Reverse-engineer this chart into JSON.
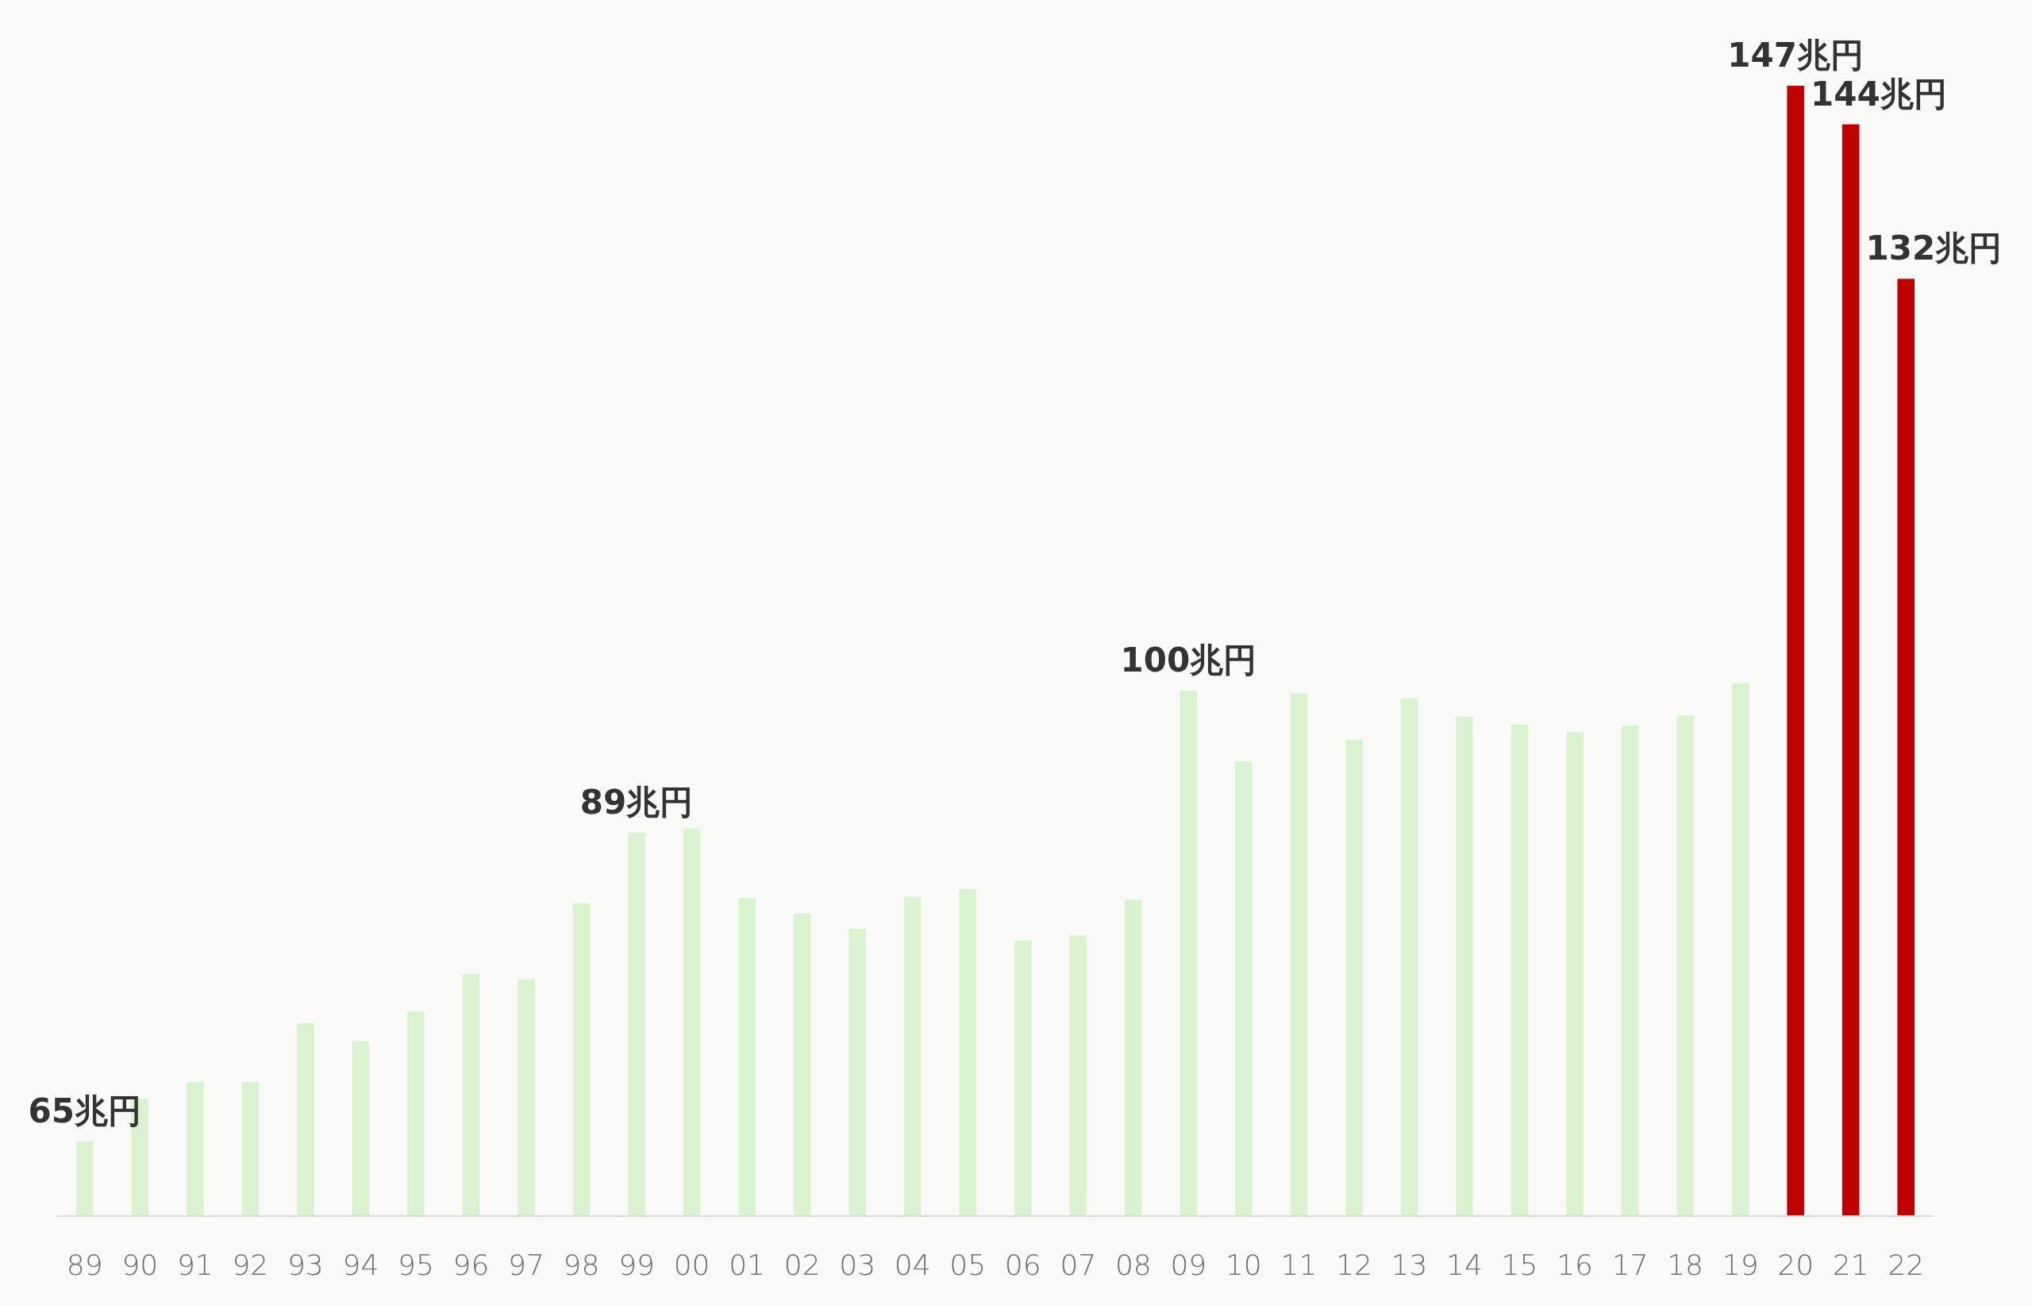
{
  "chart_data": {
    "type": "bar",
    "categories": [
      "89",
      "90",
      "91",
      "92",
      "93",
      "94",
      "95",
      "96",
      "97",
      "98",
      "99",
      "00",
      "01",
      "02",
      "03",
      "04",
      "05",
      "06",
      "07",
      "08",
      "09",
      "10",
      "11",
      "12",
      "13",
      "14",
      "15",
      "16",
      "17",
      "18",
      "19",
      "20",
      "21",
      "22"
    ],
    "values": [
      65,
      68.3,
      69.6,
      69.6,
      74.2,
      72.8,
      75.1,
      78.0,
      77.6,
      83.5,
      89,
      89.3,
      83.9,
      82.7,
      81.5,
      84.0,
      84.6,
      80.6,
      81.0,
      83.8,
      100,
      94.5,
      99.8,
      96.2,
      99.4,
      98.0,
      97.4,
      96.8,
      97.3,
      98.1,
      100.6,
      147,
      144,
      132
    ],
    "colors": [
      "#d9f2d0",
      "#d9f2d0",
      "#d9f2d0",
      "#d9f2d0",
      "#d9f2d0",
      "#d9f2d0",
      "#d9f2d0",
      "#d9f2d0",
      "#d9f2d0",
      "#d9f2d0",
      "#d9f2d0",
      "#d9f2d0",
      "#d9f2d0",
      "#d9f2d0",
      "#d9f2d0",
      "#d9f2d0",
      "#d9f2d0",
      "#d9f2d0",
      "#d9f2d0",
      "#d9f2d0",
      "#d9f2d0",
      "#d9f2d0",
      "#d9f2d0",
      "#d9f2d0",
      "#d9f2d0",
      "#d9f2d0",
      "#d9f2d0",
      "#d9f2d0",
      "#d9f2d0",
      "#d9f2d0",
      "#d9f2d0",
      "#c00000",
      "#c00000",
      "#c00000"
    ],
    "value_labels": [
      "65兆円",
      null,
      null,
      null,
      null,
      null,
      null,
      null,
      null,
      null,
      "89兆円",
      null,
      null,
      null,
      null,
      null,
      null,
      null,
      null,
      null,
      "100兆円",
      null,
      null,
      null,
      null,
      null,
      null,
      null,
      null,
      null,
      null,
      "147兆円",
      "144兆円",
      "132兆円"
    ],
    "ylim": [
      59.2,
      147
    ],
    "tick_labels": "x"
  }
}
